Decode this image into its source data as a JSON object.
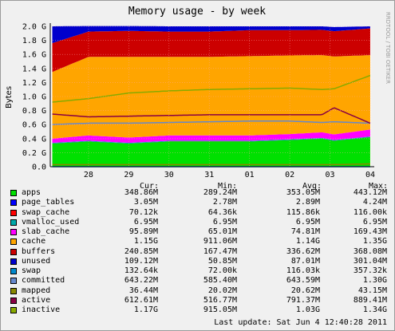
{
  "chart_data": {
    "type": "area",
    "title": "Memory usage - by week",
    "ylabel": "Bytes",
    "side_text": "RRDTOOL / TOBI OETIKER",
    "ylim": [
      0,
      2.0
    ],
    "y_ticks": [
      "0.0",
      "0.2 G",
      "0.4 G",
      "0.6 G",
      "0.8 G",
      "1.0 G",
      "1.2 G",
      "1.4 G",
      "1.6 G",
      "1.8 G",
      "2.0 G"
    ],
    "y_values": [
      0.0,
      0.2,
      0.4,
      0.6,
      0.8,
      1.0,
      1.2,
      1.4,
      1.6,
      1.8,
      2.0
    ],
    "x_ticks": [
      "28",
      "29",
      "30",
      "31",
      "01",
      "02",
      "03",
      "04"
    ],
    "x_tick_pos": [
      0.0,
      1.0,
      2.0,
      3.0,
      4.0,
      5.0,
      6.0,
      7.0
    ],
    "xlim": [
      -0.95,
      7.02
    ],
    "sample_x": [
      -0.9,
      0.0,
      1.0,
      2.0,
      3.0,
      4.0,
      5.0,
      5.8,
      6.1,
      7.0
    ],
    "stacked_series": [
      {
        "name": "apps",
        "color": "#00e000",
        "values": [
          0.33,
          0.36,
          0.33,
          0.36,
          0.36,
          0.36,
          0.38,
          0.4,
          0.37,
          0.42
        ]
      },
      {
        "name": "page_tables",
        "color": "#0000ff",
        "values": [
          0.003,
          0.003,
          0.003,
          0.003,
          0.003,
          0.003,
          0.003,
          0.003,
          0.003,
          0.003
        ]
      },
      {
        "name": "swap_cache",
        "color": "#ff0000",
        "values": [
          0.0001,
          0.0001,
          0.0001,
          0.0001,
          0.0001,
          0.0001,
          0.0001,
          0.0001,
          0.0001,
          0.0001
        ]
      },
      {
        "name": "vmalloc_used",
        "color": "#00aaaa",
        "values": [
          0.007,
          0.007,
          0.007,
          0.007,
          0.007,
          0.007,
          0.007,
          0.007,
          0.007,
          0.007
        ]
      },
      {
        "name": "slab_cache",
        "color": "#ff00ff",
        "values": [
          0.06,
          0.075,
          0.075,
          0.075,
          0.075,
          0.075,
          0.075,
          0.08,
          0.08,
          0.1
        ]
      },
      {
        "name": "cache",
        "color": "#ffa500",
        "values": [
          0.95,
          1.12,
          1.15,
          1.12,
          1.12,
          1.13,
          1.12,
          1.1,
          1.11,
          1.06
        ]
      },
      {
        "name": "buffers",
        "color": "#cc0000",
        "values": [
          0.41,
          0.36,
          0.37,
          0.36,
          0.36,
          0.37,
          0.36,
          0.36,
          0.36,
          0.38
        ]
      },
      {
        "name": "unused",
        "color": "#0000cc",
        "values": [
          0.24,
          0.08,
          0.07,
          0.075,
          0.075,
          0.055,
          0.055,
          0.05,
          0.06,
          0.03
        ]
      }
    ],
    "line_series": [
      {
        "name": "swap",
        "color": "#0088cc",
        "values": [
          0.0001,
          0.0001,
          0.0001,
          0.0001,
          0.0001,
          0.0001,
          0.0001,
          0.0001,
          0.0001,
          0.0001
        ]
      },
      {
        "name": "committed",
        "color": "#6688cc",
        "values": [
          0.6,
          0.62,
          0.62,
          0.63,
          0.64,
          0.65,
          0.65,
          0.63,
          0.64,
          0.62
        ]
      },
      {
        "name": "mapped",
        "color": "#888800",
        "values": [
          0.03,
          0.03,
          0.03,
          0.03,
          0.03,
          0.03,
          0.03,
          0.03,
          0.03,
          0.04
        ]
      },
      {
        "name": "active",
        "color": "#880044",
        "values": [
          0.75,
          0.71,
          0.72,
          0.73,
          0.74,
          0.74,
          0.74,
          0.74,
          0.84,
          0.62
        ]
      },
      {
        "name": "inactive",
        "color": "#88aa00",
        "values": [
          0.92,
          0.97,
          1.05,
          1.08,
          1.1,
          1.11,
          1.12,
          1.1,
          1.11,
          1.3
        ]
      }
    ],
    "grid": true
  },
  "legend": {
    "headers": {
      "cur": "Cur:",
      "min": "Min:",
      "avg": "Avg:",
      "max": "Max:"
    },
    "rows": [
      {
        "name": "apps",
        "color": "#00e000",
        "cur": "348.86M",
        "min": "289.24M",
        "avg": "353.05M",
        "max": "443.12M"
      },
      {
        "name": "page_tables",
        "color": "#0000ff",
        "cur": "3.05M",
        "min": "2.78M",
        "avg": "2.89M",
        "max": "4.24M"
      },
      {
        "name": "swap_cache",
        "color": "#ff0000",
        "cur": "70.12k",
        "min": "64.36k",
        "avg": "115.86k",
        "max": "116.00k"
      },
      {
        "name": "vmalloc_used",
        "color": "#00aaaa",
        "cur": "6.95M",
        "min": "6.95M",
        "avg": "6.95M",
        "max": "6.95M"
      },
      {
        "name": "slab_cache",
        "color": "#ff00ff",
        "cur": "95.89M",
        "min": "65.01M",
        "avg": "74.81M",
        "max": "169.43M"
      },
      {
        "name": "cache",
        "color": "#ffa500",
        "cur": "1.15G",
        "min": "911.06M",
        "avg": "1.14G",
        "max": "1.35G"
      },
      {
        "name": "buffers",
        "color": "#cc0000",
        "cur": "240.85M",
        "min": "167.47M",
        "avg": "336.62M",
        "max": "368.08M"
      },
      {
        "name": "unused",
        "color": "#0000cc",
        "cur": "109.12M",
        "min": "50.85M",
        "avg": "87.01M",
        "max": "301.04M"
      },
      {
        "name": "swap",
        "color": "#0088cc",
        "cur": "132.64k",
        "min": "72.00k",
        "avg": "116.03k",
        "max": "357.32k"
      },
      {
        "name": "committed",
        "color": "#6688cc",
        "cur": "643.22M",
        "min": "585.40M",
        "avg": "643.59M",
        "max": "1.30G"
      },
      {
        "name": "mapped",
        "color": "#888800",
        "cur": "36.44M",
        "min": "20.02M",
        "avg": "20.62M",
        "max": "43.15M"
      },
      {
        "name": "active",
        "color": "#880044",
        "cur": "612.61M",
        "min": "516.77M",
        "avg": "791.37M",
        "max": "889.41M"
      },
      {
        "name": "inactive",
        "color": "#88aa00",
        "cur": "1.17G",
        "min": "915.05M",
        "avg": "1.03G",
        "max": "1.34G"
      }
    ]
  },
  "footer": {
    "last_update": "Last update:  Sat Jun  4 12:40:28 2011"
  }
}
